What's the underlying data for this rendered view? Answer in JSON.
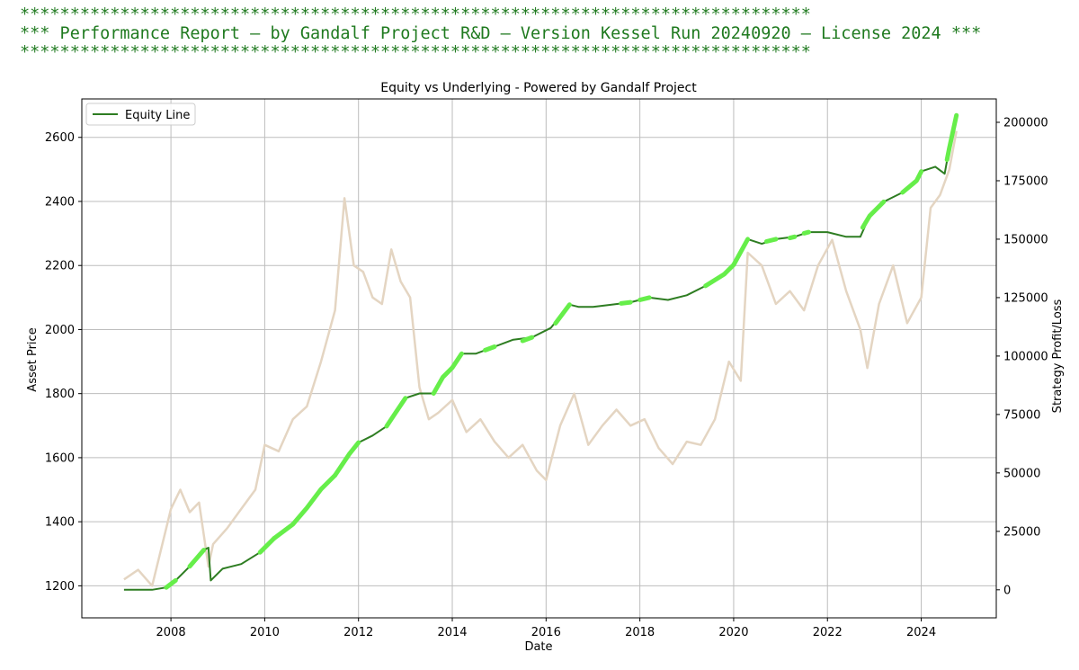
{
  "banner": {
    "border": "*******************************************************************************",
    "text": "*** Performance Report – by Gandalf Project R&D – Version Kessel Run 20240920 – License 2024 ***"
  },
  "chart_data": {
    "type": "line",
    "title": "Equity vs Underlying - Powered by Gandalf Project",
    "xlabel": "Date",
    "ylabel_left": "Asset Price",
    "ylabel_right": "Strategy Profit/Loss",
    "x_range": [
      2006.1,
      2025.6
    ],
    "ylim_left": [
      1100,
      2720
    ],
    "ylim_right": [
      -12000,
      210000
    ],
    "x_ticks": [
      2008,
      2010,
      2012,
      2014,
      2016,
      2018,
      2020,
      2022,
      2024
    ],
    "x_tick_labels": [
      "2008",
      "2010",
      "2012",
      "2014",
      "2016",
      "2018",
      "2020",
      "2022",
      "2024"
    ],
    "y_left_ticks": [
      1200,
      1400,
      1600,
      1800,
      2000,
      2200,
      2400,
      2600
    ],
    "y_left_tick_labels": [
      "1200",
      "1400",
      "1600",
      "1800",
      "2000",
      "2200",
      "2400",
      "2600"
    ],
    "y_right_ticks": [
      0,
      25000,
      50000,
      75000,
      100000,
      125000,
      150000,
      175000,
      200000
    ],
    "y_right_tick_labels": [
      "0",
      "25000",
      "50000",
      "75000",
      "100000",
      "125000",
      "150000",
      "175000",
      "200000"
    ],
    "grid": true,
    "legend": {
      "position": "top-left",
      "entries": [
        "Equity Line"
      ]
    },
    "colors": {
      "equity": "#2e7d22",
      "equity_highlight": "#66ee4a",
      "underlying": "#e4d5c2",
      "grid": "#bdbdbd"
    },
    "series": [
      {
        "name": "Underlying",
        "axis": "left",
        "x": [
          2007.0,
          2007.3,
          2007.6,
          2007.9,
          2008.0,
          2008.2,
          2008.4,
          2008.6,
          2008.8,
          2008.9,
          2009.2,
          2009.5,
          2009.8,
          2010.0,
          2010.3,
          2010.6,
          2010.9,
          2011.2,
          2011.5,
          2011.7,
          2011.9,
          2012.1,
          2012.3,
          2012.5,
          2012.7,
          2012.9,
          2013.1,
          2013.3,
          2013.5,
          2013.7,
          2014.0,
          2014.3,
          2014.6,
          2014.9,
          2015.2,
          2015.5,
          2015.8,
          2016.0,
          2016.3,
          2016.6,
          2016.9,
          2017.2,
          2017.5,
          2017.8,
          2018.1,
          2018.4,
          2018.7,
          2019.0,
          2019.3,
          2019.6,
          2019.9,
          2020.15,
          2020.3,
          2020.6,
          2020.9,
          2021.2,
          2021.5,
          2021.8,
          2022.1,
          2022.4,
          2022.7,
          2022.85,
          2023.1,
          2023.4,
          2023.7,
          2024.0,
          2024.2,
          2024.4,
          2024.6,
          2024.75
        ],
        "values": [
          1220,
          1250,
          1200,
          1380,
          1440,
          1500,
          1430,
          1460,
          1260,
          1330,
          1380,
          1440,
          1500,
          1640,
          1620,
          1720,
          1760,
          1900,
          2060,
          2410,
          2200,
          2180,
          2100,
          2080,
          2250,
          2150,
          2100,
          1820,
          1720,
          1740,
          1780,
          1680,
          1720,
          1650,
          1600,
          1640,
          1560,
          1530,
          1700,
          1800,
          1640,
          1700,
          1750,
          1700,
          1720,
          1630,
          1580,
          1650,
          1640,
          1720,
          1900,
          1840,
          2240,
          2200,
          2080,
          2120,
          2060,
          2200,
          2280,
          2120,
          2000,
          1880,
          2080,
          2200,
          2020,
          2100,
          2380,
          2420,
          2500,
          2620
        ]
      },
      {
        "name": "Equity Line",
        "axis": "right",
        "x": [
          2007.0,
          2007.3,
          2007.6,
          2007.9,
          2008.1,
          2008.4,
          2008.7,
          2008.8,
          2008.85,
          2009.1,
          2009.5,
          2009.9,
          2010.2,
          2010.6,
          2010.9,
          2011.2,
          2011.5,
          2011.8,
          2012.0,
          2012.3,
          2012.6,
          2012.8,
          2013.0,
          2013.3,
          2013.6,
          2013.8,
          2014.0,
          2014.2,
          2014.5,
          2014.9,
          2015.3,
          2015.7,
          2016.1,
          2016.5,
          2016.7,
          2017.0,
          2017.4,
          2017.8,
          2018.2,
          2018.6,
          2019.0,
          2019.4,
          2019.8,
          2020.0,
          2020.3,
          2020.6,
          2020.9,
          2021.3,
          2021.6,
          2022.0,
          2022.4,
          2022.7,
          2022.9,
          2023.2,
          2023.6,
          2023.9,
          2024.0,
          2024.3,
          2024.5,
          2024.6,
          2024.75
        ],
        "values": [
          0,
          0,
          0,
          1000,
          4000,
          10000,
          17000,
          18000,
          4000,
          9000,
          11000,
          16000,
          22000,
          28000,
          35000,
          43000,
          49000,
          58000,
          63000,
          66000,
          70000,
          76000,
          82000,
          84000,
          84000,
          91000,
          95000,
          101000,
          101000,
          104000,
          107000,
          108000,
          112000,
          122000,
          121000,
          121000,
          122000,
          123000,
          125000,
          124000,
          126000,
          130000,
          135000,
          139000,
          150000,
          148000,
          150000,
          151000,
          153000,
          153000,
          151000,
          151000,
          160000,
          166000,
          170000,
          175000,
          179000,
          181000,
          178000,
          189000,
          203000
        ]
      },
      {
        "name": "Equity new highs (highlight)",
        "axis": "right",
        "segments": [
          {
            "x": [
              2007.9,
              2008.1
            ],
            "values": [
              1000,
              4000
            ]
          },
          {
            "x": [
              2008.4,
              2008.7
            ],
            "values": [
              10000,
              17000
            ]
          },
          {
            "x": [
              2009.9,
              2010.2
            ],
            "values": [
              16000,
              22000
            ]
          },
          {
            "x": [
              2010.2,
              2010.6,
              2010.9,
              2011.2,
              2011.5
            ],
            "values": [
              22000,
              28000,
              35000,
              43000,
              49000
            ]
          },
          {
            "x": [
              2011.5,
              2011.8,
              2012.0
            ],
            "values": [
              49000,
              58000,
              63000
            ]
          },
          {
            "x": [
              2012.6,
              2012.8,
              2013.0
            ],
            "values": [
              70000,
              76000,
              82000
            ]
          },
          {
            "x": [
              2013.6,
              2013.8,
              2014.0,
              2014.2
            ],
            "values": [
              84000,
              91000,
              95000,
              101000
            ]
          },
          {
            "x": [
              2014.7,
              2014.9
            ],
            "values": [
              102500,
              104000
            ]
          },
          {
            "x": [
              2015.5,
              2015.7
            ],
            "values": [
              106500,
              108000
            ]
          },
          {
            "x": [
              2016.2,
              2016.5
            ],
            "values": [
              114000,
              122000
            ]
          },
          {
            "x": [
              2017.6,
              2017.8
            ],
            "values": [
              122500,
              123000
            ]
          },
          {
            "x": [
              2018.0,
              2018.2
            ],
            "values": [
              124000,
              125000
            ]
          },
          {
            "x": [
              2019.4,
              2019.8,
              2020.0,
              2020.3
            ],
            "values": [
              130000,
              135000,
              139000,
              150000
            ]
          },
          {
            "x": [
              2020.7,
              2020.9
            ],
            "values": [
              149000,
              150000
            ]
          },
          {
            "x": [
              2021.2,
              2021.3
            ],
            "values": [
              150500,
              151000
            ]
          },
          {
            "x": [
              2021.5,
              2021.6
            ],
            "values": [
              152500,
              153000
            ]
          },
          {
            "x": [
              2022.75,
              2022.9,
              2023.2
            ],
            "values": [
              155000,
              160000,
              166000
            ]
          },
          {
            "x": [
              2023.6,
              2023.9,
              2024.0
            ],
            "values": [
              170000,
              175000,
              179000
            ]
          },
          {
            "x": [
              2024.55,
              2024.6,
              2024.75
            ],
            "values": [
              184000,
              189000,
              203000
            ]
          }
        ]
      }
    ]
  }
}
